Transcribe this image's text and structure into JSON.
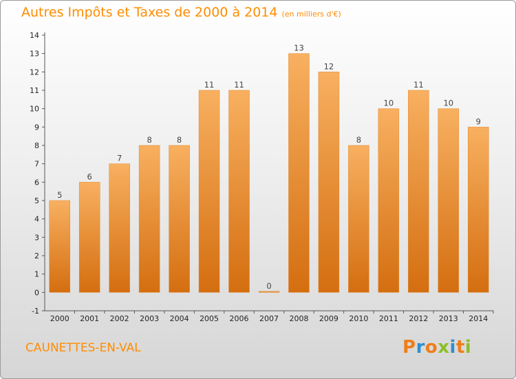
{
  "title": "Autres Impôts et Taxes de 2000 à 2014",
  "subtitle": "(en milliers d'€)",
  "commune": "CAUNETTES-EN-VAL",
  "logo": {
    "letters": [
      "P",
      "r",
      "o",
      "x",
      "i",
      "t",
      "i"
    ],
    "colors": [
      "#f07d1a",
      "#2e8fcf",
      "#f07d1a",
      "#8cbf26",
      "#2e8fcf",
      "#f07d1a",
      "#8cbf26"
    ]
  },
  "colors": {
    "accent": "#ff8c00",
    "bar_top": "#f8b060",
    "bar_bottom": "#d46e10"
  },
  "chart_data": {
    "type": "bar",
    "title": "Autres Impôts et Taxes de 2000 à 2014",
    "subtitle": "(en milliers d'€)",
    "categories": [
      "2000",
      "2001",
      "2002",
      "2003",
      "2004",
      "2005",
      "2006",
      "2007",
      "2008",
      "2009",
      "2010",
      "2011",
      "2012",
      "2013",
      "2014"
    ],
    "values": [
      5,
      6,
      7,
      8,
      8,
      11,
      11,
      0,
      13,
      12,
      8,
      10,
      11,
      10,
      9
    ],
    "ylim": [
      -1,
      14
    ],
    "yticks": [
      "-1",
      "0",
      "1",
      "2",
      "3",
      "4",
      "5",
      "6",
      "7",
      "8",
      "9",
      "10",
      "11",
      "12",
      "13",
      "14"
    ],
    "grid": false,
    "legend": "none"
  }
}
